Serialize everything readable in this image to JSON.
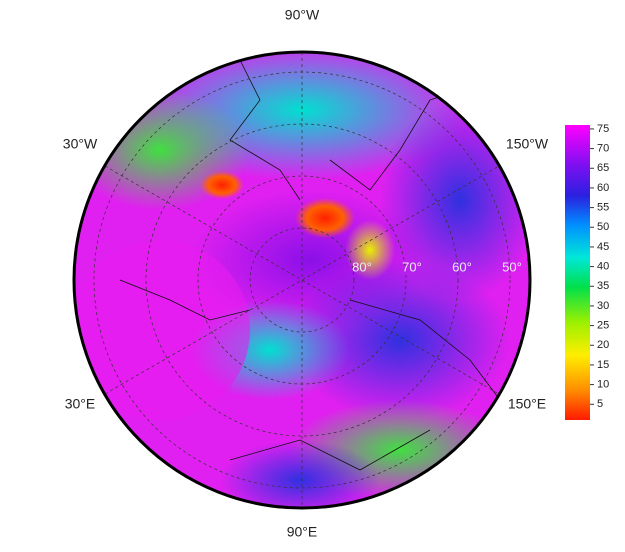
{
  "map": {
    "longitude_labels": [
      "90°W",
      "30°W",
      "150°W",
      "30°E",
      "150°E",
      "90°E"
    ],
    "latitude_labels": [
      "80°",
      "70°",
      "60°",
      "50°"
    ],
    "colorbar": {
      "range": [
        1,
        76
      ],
      "ticks": [
        5,
        10,
        15,
        20,
        25,
        30,
        35,
        40,
        45,
        50,
        55,
        60,
        65,
        70,
        75
      ]
    }
  }
}
